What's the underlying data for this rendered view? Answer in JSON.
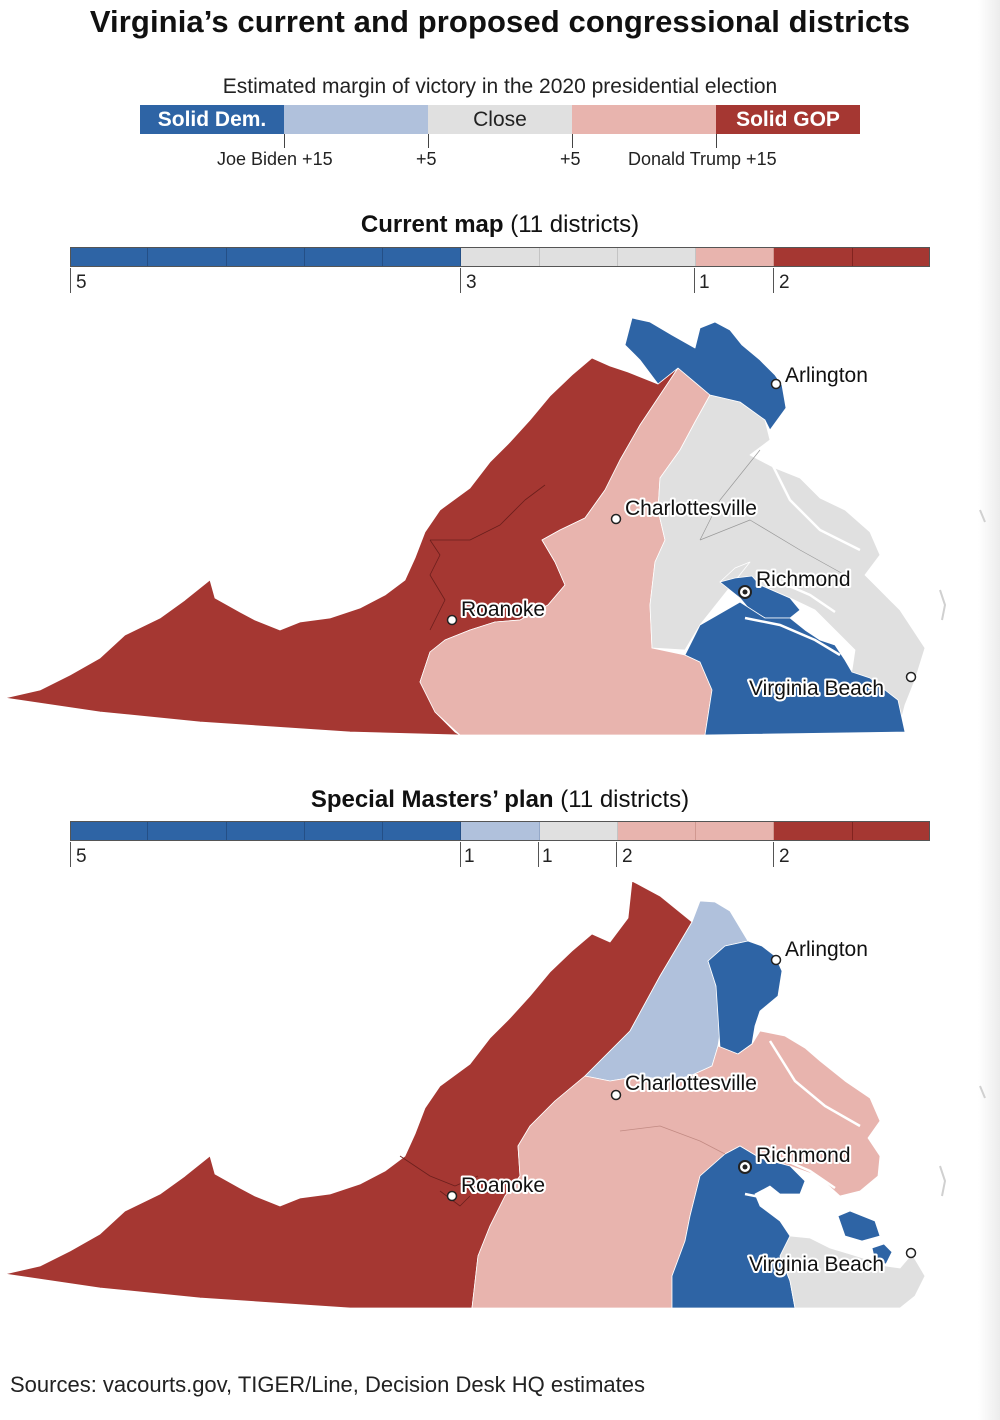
{
  "title": "Virginia’s current and proposed congressional districts",
  "legend": {
    "caption": "Estimated margin of victory in the 2020 presidential election",
    "segments": {
      "solid_dem": "Solid Dem.",
      "lean_dem": "",
      "close": "Close",
      "lean_gop": "",
      "solid_gop": "Solid GOP"
    },
    "ticks": {
      "biden15": "Joe Biden +15",
      "d5": "+5",
      "r5": "+5",
      "trump15": "Donald Trump +15"
    }
  },
  "colors": {
    "solid_dem": "#2e64a5",
    "lean_dem": "#b0c1dc",
    "close": "#e0e0e0",
    "lean_gop": "#e8b4ae",
    "solid_gop": "#a53732"
  },
  "current": {
    "title_bold": "Current map",
    "title_rest": " (11 districts)",
    "counts": {
      "solid_dem": "5",
      "close": "3",
      "lean_gop": "1",
      "solid_gop": "2"
    }
  },
  "proposed": {
    "title_bold": "Special Masters’ plan",
    "title_rest": " (11 districts)",
    "counts": {
      "solid_dem": "5",
      "lean_dem": "1",
      "close": "1",
      "lean_gop": "2",
      "solid_gop": "2"
    }
  },
  "cities": {
    "arlington": "Arlington",
    "charlottesville": "Charlottesville",
    "richmond": "Richmond",
    "roanoke": "Roanoke",
    "virginia_beach": "Virginia Beach"
  },
  "source": "Sources: vacourts.gov, TIGER/Line, Decision Desk HQ estimates"
}
